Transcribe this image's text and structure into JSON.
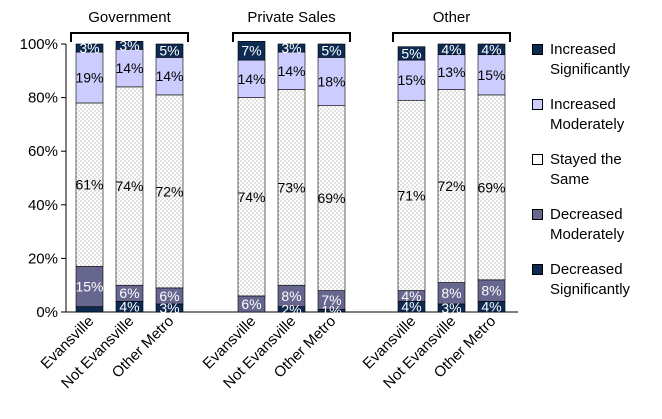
{
  "chart_data": {
    "type": "bar",
    "stacked": true,
    "percent_stacked": true,
    "groups": [
      {
        "name": "Government",
        "categories": [
          "Evansville",
          "Not Evansville",
          "Other Metro"
        ]
      },
      {
        "name": "Private Sales",
        "categories": [
          "Evansville",
          "Not Evansville",
          "Other Metro"
        ]
      },
      {
        "name": "Other",
        "categories": [
          "Evansville",
          "Not Evansville",
          "Other Metro"
        ]
      }
    ],
    "y_ticks": [
      "0%",
      "20%",
      "40%",
      "60%",
      "80%",
      "100%"
    ],
    "ylim": [
      0,
      100
    ],
    "series": [
      {
        "name": "Decreased Significantly",
        "color": "#0d2a52",
        "values": [
          2,
          4,
          3,
          0,
          2,
          1,
          4,
          3,
          4
        ],
        "labels": [
          "",
          "4%",
          "3%",
          "",
          "2%",
          "1%",
          "4%",
          "3%",
          "4%"
        ]
      },
      {
        "name": "Decreased Moderately",
        "color": "#66668f",
        "values": [
          15,
          6,
          6,
          6,
          8,
          7,
          4,
          8,
          8
        ],
        "labels": [
          "15%",
          "6%",
          "6%",
          "6%",
          "8%",
          "7%",
          "4%",
          "8%",
          "8%"
        ]
      },
      {
        "name": "Stayed the Same",
        "color": "#ffffff",
        "values": [
          61,
          74,
          72,
          74,
          73,
          69,
          71,
          72,
          69
        ],
        "labels": [
          "61%",
          "74%",
          "72%",
          "74%",
          "73%",
          "69%",
          "71%",
          "72%",
          "69%"
        ]
      },
      {
        "name": "Increased Moderately",
        "color": "#ccccff",
        "values": [
          19,
          14,
          14,
          14,
          14,
          18,
          15,
          13,
          15
        ],
        "labels": [
          "19%",
          "14%",
          "14%",
          "14%",
          "14%",
          "18%",
          "15%",
          "13%",
          "15%"
        ]
      },
      {
        "name": "Increased Significantly",
        "color": "#0d2a52",
        "values": [
          3,
          3,
          5,
          7,
          3,
          5,
          5,
          4,
          4
        ],
        "labels": [
          "3%",
          "3%",
          "5%",
          "7%",
          "3%",
          "5%",
          "5%",
          "4%",
          "4%"
        ]
      }
    ],
    "legend_order": [
      "Increased Significantly",
      "Increased Moderately",
      "Stayed the Same",
      "Decreased Moderately",
      "Decreased Significantly"
    ],
    "legend_labels": {
      "Increased Significantly": [
        "Increased",
        "Significantly"
      ],
      "Increased Moderately": [
        "Increased",
        "Moderately"
      ],
      "Stayed the Same": [
        "Stayed the",
        "Same"
      ],
      "Decreased Moderately": [
        "Decreased",
        "Moderately"
      ],
      "Decreased Significantly": [
        "Decreased",
        "Significantly"
      ]
    },
    "legend_position": "right",
    "grid": false
  }
}
